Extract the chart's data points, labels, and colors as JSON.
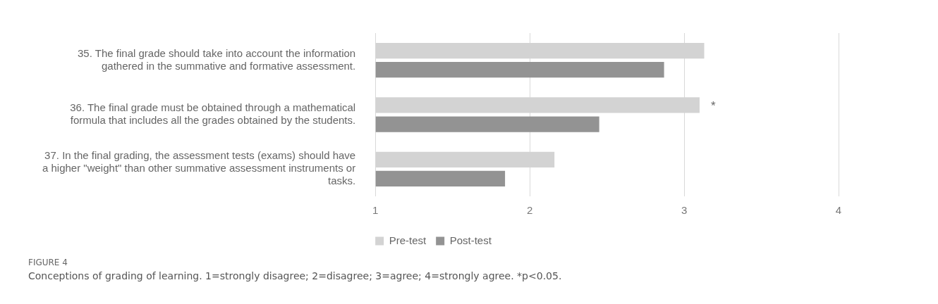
{
  "chart_data": {
    "type": "bar",
    "orientation": "horizontal",
    "categories": [
      "35. The final grade should take into account the information gathered in the summative and formative assessment.",
      "36. The final grade must be obtained through a mathematical formula that includes all the grades obtained by the students.",
      "37. In the final grading, the assessment tests (exams) should have a higher \"weight\" than other summative assessment instruments or tasks."
    ],
    "series": [
      {
        "name": "Pre-test",
        "color": "#d3d3d3",
        "values": [
          3.13,
          3.1,
          2.16
        ],
        "value_labels": [
          null,
          "*",
          null
        ]
      },
      {
        "name": "Post-test",
        "color": "#939393",
        "values": [
          2.87,
          2.45,
          1.84
        ]
      }
    ],
    "xlim": [
      1,
      4
    ],
    "xticks": [
      1,
      2,
      3,
      4
    ],
    "grid": "x",
    "legend": "bottom",
    "annotations": [
      "FIGURE 4",
      "Conceptions of grading of learning. 1=strongly disagree; 2=disagree; 3=agree; 4=strongly agree. *p<0.05."
    ]
  }
}
